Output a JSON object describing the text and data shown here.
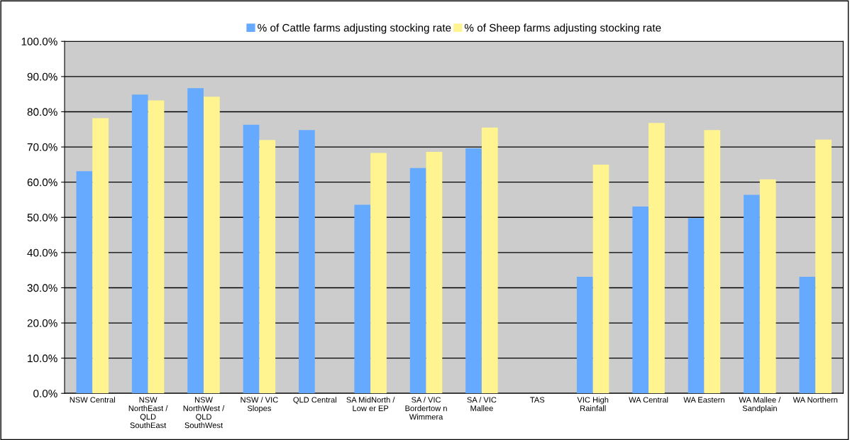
{
  "chart_data": {
    "type": "bar",
    "categories": [
      "NSW Central",
      "NSW\nNorthEast /\nQLD\nSouthEast",
      "NSW\nNorthWest /\nQLD\nSouthWest",
      "NSW / VIC\nSlopes",
      "QLD Central",
      "SA MidNorth /\nLow er EP",
      "SA / VIC\nBordertow n\nWimmera",
      "SA / VIC\nMallee",
      "TAS",
      "VIC High\nRainfall",
      "WA Central",
      "WA Eastern",
      "WA Mallee /\nSandplain",
      "WA Northern"
    ],
    "series": [
      {
        "name": "% of Cattle farms adjusting stocking rate",
        "color": "#66aaff",
        "values": [
          63.1,
          84.9,
          86.7,
          76.3,
          74.8,
          53.6,
          64.0,
          69.6,
          null,
          33.1,
          53.1,
          49.8,
          56.4,
          33.1
        ]
      },
      {
        "name": "% of Sheep farms adjusting stocking rate",
        "color": "#fff48f",
        "values": [
          78.2,
          83.2,
          84.3,
          72.0,
          null,
          68.3,
          68.6,
          75.5,
          null,
          65.0,
          76.8,
          74.8,
          60.8,
          72.1
        ]
      }
    ],
    "ylim": [
      0,
      100
    ],
    "yticks": [
      {
        "value": 0,
        "label": "0.0%"
      },
      {
        "value": 10,
        "label": "10.0%"
      },
      {
        "value": 20,
        "label": "20.0%"
      },
      {
        "value": 30,
        "label": "30.0%"
      },
      {
        "value": 40,
        "label": "40.0%"
      },
      {
        "value": 50,
        "label": "50.0%"
      },
      {
        "value": 60,
        "label": "60.0%"
      },
      {
        "value": 70,
        "label": "70.0%"
      },
      {
        "value": 80,
        "label": "80.0%"
      },
      {
        "value": 90,
        "label": "90.0%"
      },
      {
        "value": 100,
        "label": "100.0%"
      }
    ],
    "grid": "y",
    "legend": "top"
  }
}
